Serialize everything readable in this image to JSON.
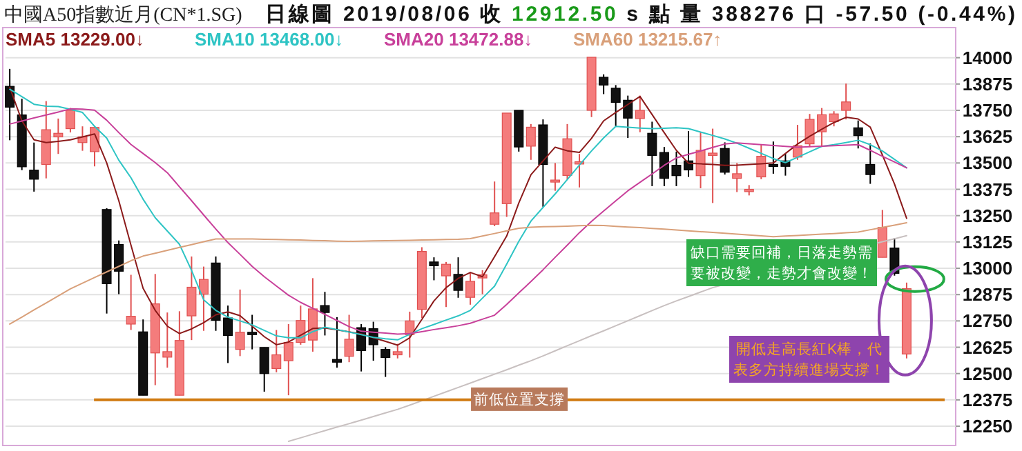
{
  "chart_data": {
    "type": "candlestick",
    "title": "中國A50指數近月(CN*1.SG)",
    "subtitle": "日線圖 2019/08/06 收 12912.50 s 點 量 388276 口 -57.50 (-0.44%)",
    "categories": [
      null,
      null,
      null,
      null,
      null,
      null,
      null,
      null,
      null,
      null,
      null,
      null,
      null,
      null,
      null,
      null,
      null,
      null,
      null,
      null,
      null,
      null,
      null,
      null,
      null,
      null,
      null,
      null,
      null,
      null,
      null,
      null,
      null,
      null,
      null,
      null,
      null,
      null,
      null,
      null,
      null,
      null,
      null,
      null,
      null,
      null,
      null,
      null,
      null,
      null,
      null,
      null,
      null,
      null,
      null,
      null,
      null,
      null,
      null,
      null,
      null,
      null,
      null,
      null,
      null,
      null,
      null,
      null,
      null,
      null,
      null,
      null,
      null,
      null,
      null
    ],
    "ohlc": [
      [
        13864,
        13947,
        13608,
        13765
      ],
      [
        13728,
        13805,
        13466,
        13482
      ],
      [
        13466,
        13597,
        13364,
        13423
      ],
      [
        13493,
        13794,
        13427,
        13658
      ],
      [
        13624,
        13711,
        13543,
        13641
      ],
      [
        13663,
        13761,
        13645,
        13750
      ],
      [
        13597,
        13674,
        13558,
        13624
      ],
      [
        13554,
        13674,
        13484,
        13669
      ],
      [
        13279,
        13285,
        12785,
        12927
      ],
      [
        13113,
        13132,
        12877,
        12986
      ],
      [
        12735,
        12969,
        12707,
        12772
      ],
      [
        12698,
        12757,
        12397,
        12397
      ],
      [
        12598,
        12973,
        12445,
        12831
      ],
      [
        12578,
        12790,
        12528,
        12604
      ],
      [
        12397,
        12796,
        12397,
        12657
      ],
      [
        12774,
        13056,
        12659,
        12910
      ],
      [
        12877,
        13008,
        12703,
        12947
      ],
      [
        13025,
        13056,
        12703,
        12753
      ],
      [
        12764,
        12823,
        12550,
        12681
      ],
      [
        12615,
        12899,
        12583,
        12696
      ],
      [
        12696,
        12779,
        12615,
        12685
      ],
      [
        12624,
        12624,
        12414,
        12500
      ],
      [
        12524,
        12707,
        12506,
        12589
      ],
      [
        12561,
        12735,
        12397,
        12648
      ],
      [
        12648,
        12823,
        12637,
        12752
      ],
      [
        12659,
        12953,
        12604,
        12807
      ],
      [
        12823,
        12888,
        12681,
        12790
      ],
      [
        12567,
        12768,
        12528,
        12554
      ],
      [
        12582,
        12779,
        12554,
        12663
      ],
      [
        12718,
        12735,
        12510,
        12609
      ],
      [
        12713,
        12746,
        12561,
        12637
      ],
      [
        12615,
        12626,
        12484,
        12576
      ],
      [
        12589,
        12641,
        12572,
        12604
      ],
      [
        12685,
        12794,
        12576,
        12750
      ],
      [
        12805,
        13100,
        12764,
        13080
      ],
      [
        13030,
        13052,
        12943,
        13012
      ],
      [
        12964,
        13030,
        12816,
        13019
      ],
      [
        12971,
        13052,
        12860,
        12895
      ],
      [
        12862,
        12982,
        12827,
        12938
      ],
      [
        12954,
        12991,
        12877,
        12969
      ],
      [
        13209,
        13412,
        13200,
        13263
      ],
      [
        13307,
        13737,
        13244,
        13737
      ],
      [
        13750,
        13750,
        13554,
        13576
      ],
      [
        13580,
        13685,
        13515,
        13670
      ],
      [
        13681,
        13707,
        13292,
        13493
      ],
      [
        13412,
        13500,
        13368,
        13419
      ],
      [
        13441,
        13685,
        13423,
        13615
      ],
      [
        13495,
        13543,
        13384,
        13506
      ],
      [
        13750,
        14002,
        13718,
        14002
      ],
      [
        13907,
        13921,
        13827,
        13870
      ],
      [
        13855,
        13870,
        13674,
        13788
      ],
      [
        13798,
        13820,
        13619,
        13713
      ],
      [
        13711,
        13820,
        13646,
        13750
      ],
      [
        13641,
        13696,
        13390,
        13536
      ],
      [
        13550,
        13576,
        13390,
        13427
      ],
      [
        13489,
        13554,
        13390,
        13440
      ],
      [
        13510,
        13652,
        13434,
        13467
      ],
      [
        13440,
        13646,
        13380,
        13560
      ],
      [
        13536,
        13663,
        13310,
        13547
      ],
      [
        13569,
        13598,
        13445,
        13456
      ],
      [
        13427,
        13500,
        13362,
        13449
      ],
      [
        13364,
        13395,
        13346,
        13375
      ],
      [
        13434,
        13587,
        13423,
        13532
      ],
      [
        13493,
        13602,
        13449,
        13484
      ],
      [
        13510,
        13543,
        13440,
        13484
      ],
      [
        13528,
        13681,
        13515,
        13582
      ],
      [
        13591,
        13733,
        13576,
        13707
      ],
      [
        13648,
        13761,
        13576,
        13729
      ],
      [
        13696,
        13746,
        13674,
        13733
      ],
      [
        13750,
        13877,
        13707,
        13790
      ],
      [
        13667,
        13702,
        13569,
        13630
      ],
      [
        13493,
        13593,
        13401,
        13445
      ],
      [
        13052,
        13277,
        13052,
        13194
      ],
      [
        13096,
        13144,
        12965,
        12976
      ],
      [
        12593,
        12932,
        12572,
        12903
      ]
    ],
    "series": [
      {
        "name": "SMA5 13229.00↓",
        "type": "line",
        "color": "#8b1a1a",
        "values": [
          13859,
          13700,
          13610,
          13597,
          13603,
          13610,
          13624,
          13638,
          13500,
          13320,
          13110,
          12905,
          12800,
          12725,
          12690,
          12712,
          12742,
          12779,
          12793,
          12775,
          12725,
          12675,
          12637,
          12650,
          12682,
          12714,
          12717,
          12708,
          12698,
          12688,
          12670,
          12653,
          12635,
          12670,
          12757,
          12845,
          12908,
          12952,
          12980,
          12960,
          13055,
          13153,
          13310,
          13444,
          13510,
          13575,
          13558,
          13550,
          13617,
          13700,
          13740,
          13778,
          13816,
          13730,
          13644,
          13560,
          13499,
          13496,
          13493,
          13489,
          13490,
          13493,
          13496,
          13500,
          13545,
          13590,
          13627,
          13660,
          13692,
          13717,
          13709,
          13670,
          13538,
          13400,
          13237
        ]
      },
      {
        "name": "SMA10 13468.00↓",
        "type": "line",
        "color": "#2ec4c4",
        "values": [
          13850,
          13815,
          13779,
          13770,
          13768,
          13755,
          13740,
          13674,
          13618,
          13513,
          13430,
          13328,
          13240,
          13177,
          13114,
          12990,
          12850,
          12800,
          12768,
          12750,
          12731,
          12705,
          12679,
          12670,
          12670,
          12699,
          12720,
          12709,
          12697,
          12685,
          12672,
          12665,
          12660,
          12686,
          12713,
          12733,
          12754,
          12774,
          12800,
          12858,
          12915,
          13020,
          13128,
          13224,
          13289,
          13353,
          13421,
          13490,
          13557,
          13619,
          13674,
          13670,
          13666,
          13663,
          13665,
          13667,
          13663,
          13647,
          13631,
          13614,
          13594,
          13570,
          13546,
          13521,
          13502,
          13527,
          13553,
          13579,
          13587,
          13597,
          13608,
          13587,
          13557,
          13517,
          13477
        ]
      },
      {
        "name": "SMA20 13472.88↓",
        "type": "line",
        "color": "#c8409a",
        "values": [
          13685,
          13699,
          13714,
          13728,
          13742,
          13757,
          13756,
          13751,
          13703,
          13644,
          13588,
          13545,
          13502,
          13454,
          13387,
          13321,
          13253,
          13186,
          13122,
          13066,
          13009,
          12960,
          12916,
          12872,
          12838,
          12810,
          12781,
          12752,
          12723,
          12701,
          12696,
          12692,
          12687,
          12690,
          12699,
          12709,
          12718,
          12727,
          12739,
          12758,
          12777,
          12828,
          12883,
          12937,
          12993,
          13052,
          13110,
          13169,
          13223,
          13272,
          13320,
          13368,
          13408,
          13448,
          13489,
          13524,
          13541,
          13557,
          13574,
          13590,
          13595,
          13591,
          13587,
          13583,
          13579,
          13575,
          13577,
          13580,
          13582,
          13585,
          13587,
          13560,
          13532,
          13505,
          13477
        ]
      },
      {
        "name": "SMA60 13215.67↑",
        "type": "line",
        "color": "#d9a07a",
        "values": [
          12735,
          12768,
          12802,
          12835,
          12869,
          12902,
          12929,
          12956,
          12983,
          13009,
          13036,
          13058,
          13071,
          13085,
          13099,
          13112,
          13126,
          13139,
          13139,
          13139,
          13139,
          13138,
          13137,
          13135,
          13134,
          13132,
          13131,
          13129,
          13128,
          13129,
          13130,
          13131,
          13132,
          13133,
          13134,
          13135,
          13137,
          13138,
          13141,
          13153,
          13165,
          13178,
          13190,
          13195,
          13197,
          13198,
          13200,
          13202,
          13204,
          13203,
          13199,
          13196,
          13193,
          13189,
          13186,
          13182,
          13178,
          13174,
          13170,
          13166,
          13162,
          13158,
          13154,
          13150,
          13153,
          13156,
          13159,
          13162,
          13165,
          13169,
          13172,
          13183,
          13194,
          13205,
          13216
        ]
      },
      {
        "type": "line",
        "color": "#c8c0c0",
        "values": [
          null,
          null,
          null,
          null,
          null,
          null,
          null,
          null,
          null,
          null,
          null,
          null,
          null,
          null,
          null,
          null,
          null,
          null,
          null,
          null,
          null,
          null,
          null,
          12178,
          12195,
          12212,
          12229,
          12246,
          12262,
          12279,
          12296,
          12313,
          12330,
          12350,
          12371,
          12392,
          12413,
          12434,
          12455,
          12476,
          12497,
          12518,
          12540,
          12561,
          12584,
          12608,
          12632,
          12656,
          12680,
          12703,
          12727,
          12751,
          12775,
          12799,
          12823,
          12845,
          12866,
          12887,
          12908,
          null,
          null,
          null,
          null,
          null,
          null,
          null,
          null,
          null,
          null,
          null,
          null,
          null,
          13126,
          13140,
          13155
        ]
      }
    ],
    "ref_lines": [
      {
        "axis": "y",
        "value": 12375,
        "label": "前低位置支撐",
        "color": "#d07a10"
      }
    ],
    "annotations": [
      "缺口需要回補，日落走勢需要被改變，走勢才會改變！",
      "開低走高長紅K棒，代表多方持續進場支撐！"
    ],
    "ylim": [
      12165,
      14012
    ],
    "yticks": [
      12250,
      12375,
      12500,
      12625,
      12750,
      12875,
      13000,
      13125,
      13250,
      13375,
      13500,
      13625,
      13750,
      13875,
      14000
    ],
    "tick_labels": "y",
    "grid": "y"
  }
}
